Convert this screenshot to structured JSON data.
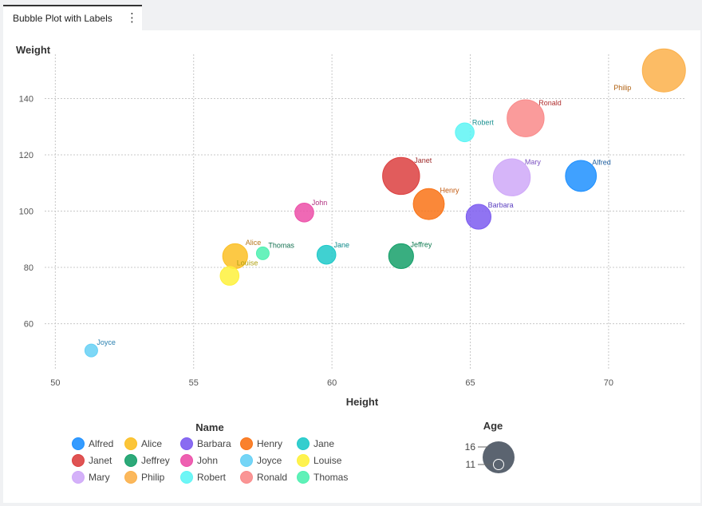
{
  "tab": {
    "label": "Bubble Plot with Labels",
    "menu_icon": "more-vertical-icon"
  },
  "chart_data": {
    "type": "scatter",
    "subtype": "bubble",
    "title": "",
    "xlabel": "Height",
    "ylabel": "Weight",
    "xlim": [
      49.5,
      72.8
    ],
    "ylim": [
      44,
      158
    ],
    "xticks": [
      50,
      55,
      60,
      65,
      70
    ],
    "yticks": [
      60,
      80,
      100,
      120,
      140
    ],
    "grid": true,
    "size_variable": "Age",
    "points": [
      {
        "name": "Alfred",
        "x": 69.0,
        "y": 112.5,
        "size": 14,
        "color": "#1e90ff",
        "label_color": "#1f5fa0"
      },
      {
        "name": "Alice",
        "x": 56.5,
        "y": 84.0,
        "size": 13,
        "color": "#fbbf24",
        "label_color": "#b7791f"
      },
      {
        "name": "Barbara",
        "x": 65.3,
        "y": 98.0,
        "size": 13,
        "color": "#7c5cf0",
        "label_color": "#5b3fc0"
      },
      {
        "name": "Henry",
        "x": 63.5,
        "y": 102.5,
        "size": 14,
        "color": "#f97316",
        "label_color": "#c2590f"
      },
      {
        "name": "Jane",
        "x": 59.8,
        "y": 84.5,
        "size": 12,
        "color": "#1ec9c9",
        "label_color": "#0e8a8a"
      },
      {
        "name": "Janet",
        "x": 62.5,
        "y": 112.5,
        "size": 15,
        "color": "#dc4040",
        "label_color": "#a02c2c"
      },
      {
        "name": "Jeffrey",
        "x": 62.5,
        "y": 84.0,
        "size": 13,
        "color": "#16a06a",
        "label_color": "#0f7a50"
      },
      {
        "name": "John",
        "x": 59.0,
        "y": 99.5,
        "size": 12,
        "color": "#ec4fa8",
        "label_color": "#b03080"
      },
      {
        "name": "Joyce",
        "x": 51.3,
        "y": 50.5,
        "size": 11,
        "color": "#66d0f5",
        "label_color": "#2a80b0"
      },
      {
        "name": "Louise",
        "x": 56.3,
        "y": 77.0,
        "size": 12,
        "color": "#fef13c",
        "label_color": "#b0a010"
      },
      {
        "name": "Mary",
        "x": 66.5,
        "y": 112.0,
        "size": 15,
        "color": "#cfa8f8",
        "label_color": "#7a50c0"
      },
      {
        "name": "Philip",
        "x": 72.0,
        "y": 150.0,
        "size": 16,
        "color": "#fbb04a",
        "label_color": "#b06010"
      },
      {
        "name": "Robert",
        "x": 64.8,
        "y": 128.0,
        "size": 12,
        "color": "#5ef5f5",
        "label_color": "#1a9090"
      },
      {
        "name": "Ronald",
        "x": 67.0,
        "y": 133.0,
        "size": 15,
        "color": "#f98a8a",
        "label_color": "#b03030"
      },
      {
        "name": "Thomas",
        "x": 57.5,
        "y": 85.0,
        "size": 11,
        "color": "#4ef0b0",
        "label_color": "#137050"
      }
    ],
    "legend_color": {
      "title": "Name",
      "items": [
        "Alfred",
        "Alice",
        "Barbara",
        "Henry",
        "Jane",
        "Janet",
        "Jeffrey",
        "John",
        "Joyce",
        "Louise",
        "Mary",
        "Philip",
        "Robert",
        "Ronald",
        "Thomas"
      ]
    },
    "legend_size": {
      "title": "Age",
      "values": [
        16,
        11
      ],
      "color": "#5b6470"
    }
  }
}
